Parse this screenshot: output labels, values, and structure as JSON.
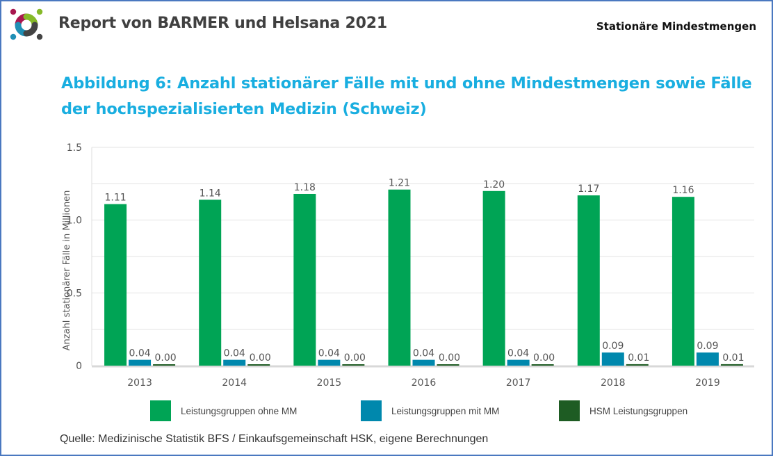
{
  "header": {
    "report_title": "Report von BARMER und Helsana 2021",
    "section_title": "Stationäre Mindestmengen",
    "logo_colors": [
      "#a8174f",
      "#86b928",
      "#1f8fb5",
      "#444444"
    ]
  },
  "figure": {
    "title": "Abbildung 6: Anzahl stationärer Fälle mit und ohne Mindestmengen sowie Fälle der hochspezialisierten Medizin (Schweiz)",
    "source": "Quelle: Medizinische Statistik BFS / Einkaufsgemeinschaft HSK, eigene Berechnungen"
  },
  "chart_data": {
    "type": "bar",
    "title": "Abbildung 6: Anzahl stationärer Fälle mit und ohne Mindestmengen sowie Fälle der hochspezialisierten Medizin (Schweiz)",
    "xlabel": "",
    "ylabel": "Anzahl stationärer Fälle in Millionen",
    "ylim": [
      0,
      1.5
    ],
    "yticks": [
      0,
      0.5,
      1.0,
      1.5
    ],
    "ytick_labels": [
      "0",
      "0.5",
      "1.0",
      "1.5"
    ],
    "minor_gridlines": [
      0.25,
      0.75,
      1.25
    ],
    "grid": true,
    "legend_position": "bottom",
    "categories": [
      "2013",
      "2014",
      "2015",
      "2016",
      "2017",
      "2018",
      "2019"
    ],
    "series": [
      {
        "name": "Leistungsgruppen ohne MM",
        "color": "#00a455",
        "values": [
          1.11,
          1.14,
          1.18,
          1.21,
          1.2,
          1.17,
          1.16
        ],
        "labels": [
          "1.11",
          "1.14",
          "1.18",
          "1.21",
          "1.20",
          "1.17",
          "1.16"
        ]
      },
      {
        "name": "Leistungsgruppen mit MM",
        "color": "#0088ad",
        "values": [
          0.04,
          0.04,
          0.04,
          0.04,
          0.04,
          0.09,
          0.09
        ],
        "labels": [
          "0.04",
          "0.04",
          "0.04",
          "0.04",
          "0.04",
          "0.09",
          "0.09"
        ]
      },
      {
        "name": "HSM Leistungsgruppen",
        "color": "#1e5c23",
        "values": [
          0.0,
          0.0,
          0.0,
          0.0,
          0.0,
          0.01,
          0.01
        ],
        "labels": [
          "0.00",
          "0.00",
          "0.00",
          "0.00",
          "0.00",
          "0.01",
          "0.01"
        ]
      }
    ]
  }
}
